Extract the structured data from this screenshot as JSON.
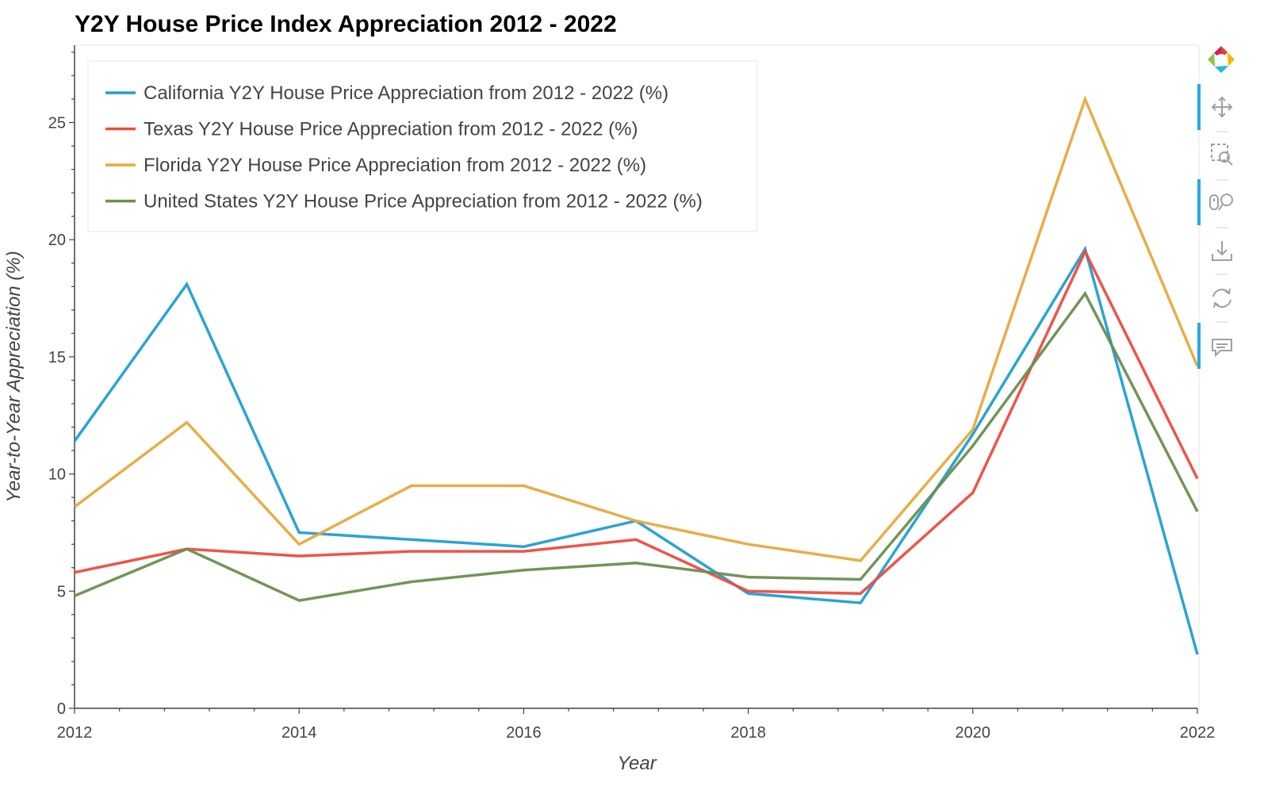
{
  "chart_data": {
    "type": "line",
    "title": "Y2Y House Price Index Appreciation 2012 - 2022",
    "xlabel": "Year",
    "ylabel": "Year-to-Year Appreciation (%)",
    "x": [
      2012,
      2013,
      2014,
      2015,
      2016,
      2017,
      2018,
      2019,
      2020,
      2021,
      2022
    ],
    "xlim": [
      2012,
      2022
    ],
    "ylim": [
      0,
      28.3
    ],
    "x_ticks": [
      "2012",
      "2014",
      "2016",
      "2018",
      "2020",
      "2022"
    ],
    "y_ticks": [
      "0",
      "5",
      "10",
      "15",
      "20",
      "25"
    ],
    "grid": false,
    "legend_position": "top-left",
    "series": [
      {
        "name": "California Y2Y House Price Appreciation from 2012 - 2022 (%)",
        "color": "#1f9fd2",
        "values": [
          11.4,
          18.1,
          7.5,
          7.2,
          6.9,
          8.0,
          4.9,
          4.5,
          11.7,
          19.6,
          2.3
        ]
      },
      {
        "name": "Texas Y2Y House Price Appreciation from 2012 - 2022 (%)",
        "color": "#f04a3e",
        "values": [
          5.8,
          6.8,
          6.5,
          6.7,
          6.7,
          7.2,
          5.0,
          4.9,
          9.2,
          19.5,
          9.8
        ]
      },
      {
        "name": "Florida Y2Y House Price Appreciation from 2012 - 2022 (%)",
        "color": "#e8a93c",
        "values": [
          8.6,
          12.2,
          7.0,
          9.5,
          9.5,
          8.0,
          7.0,
          6.3,
          11.9,
          26.0,
          14.6
        ]
      },
      {
        "name": "United States Y2Y House Price Appreciation from 2012 - 2022 (%)",
        "color": "#6b8e4e",
        "values": [
          4.8,
          6.8,
          4.6,
          5.4,
          5.9,
          6.2,
          5.6,
          5.5,
          11.2,
          17.7,
          8.4
        ]
      }
    ]
  },
  "toolbar": {
    "tools": [
      {
        "icon": "bokeh-logo-icon"
      },
      {
        "icon": "pan-icon",
        "active": true
      },
      {
        "icon": "box-zoom-icon",
        "active": false
      },
      {
        "icon": "wheel-zoom-icon",
        "active": true
      },
      {
        "icon": "save-icon",
        "active": false
      },
      {
        "icon": "reset-icon",
        "active": false
      },
      {
        "icon": "hover-icon",
        "active": true
      }
    ],
    "active_color": "#26aae1"
  }
}
